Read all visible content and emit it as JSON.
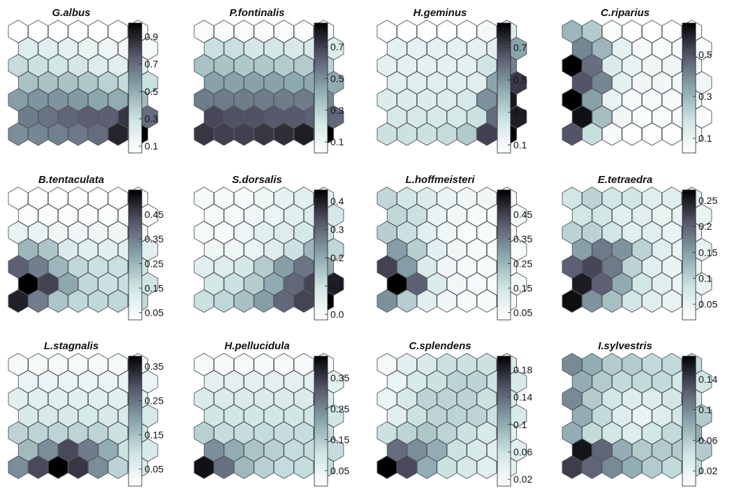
{
  "chart_data": [
    {
      "type": "heatmap",
      "title": "G.albus",
      "colorbar_ticks": [
        "0.1",
        "0.3",
        "0.5",
        "0.7",
        "0.9"
      ],
      "range": [
        0.05,
        1.0
      ],
      "values": [
        [
          0.04,
          0.04,
          0.04,
          0.05,
          0.05,
          0.05,
          0.05
        ],
        [
          0.22,
          0.2,
          0.18,
          0.16,
          0.14,
          0.12,
          0.1
        ],
        [
          0.32,
          0.3,
          0.28,
          0.26,
          0.22,
          0.2,
          0.18
        ],
        [
          0.42,
          0.42,
          0.42,
          0.4,
          0.36,
          0.32,
          0.3
        ],
        [
          0.55,
          0.58,
          0.58,
          0.56,
          0.52,
          0.5,
          0.45
        ],
        [
          0.65,
          0.68,
          0.72,
          0.74,
          0.74,
          0.85,
          0.7
        ],
        [
          0.6,
          0.62,
          0.64,
          0.66,
          0.7,
          0.9,
          1.0
        ]
      ]
    },
    {
      "type": "heatmap",
      "title": "P.fontinalis",
      "colorbar_ticks": [
        "0.1",
        "0.3",
        "0.5",
        "0.7"
      ],
      "range": [
        0.03,
        0.85
      ],
      "values": [
        [
          0.05,
          0.05,
          0.05,
          0.05,
          0.05,
          0.05,
          0.05
        ],
        [
          0.25,
          0.25,
          0.22,
          0.22,
          0.2,
          0.2,
          0.18
        ],
        [
          0.35,
          0.35,
          0.33,
          0.33,
          0.32,
          0.32,
          0.3
        ],
        [
          0.45,
          0.45,
          0.45,
          0.45,
          0.43,
          0.43,
          0.42
        ],
        [
          0.55,
          0.55,
          0.55,
          0.55,
          0.55,
          0.55,
          0.52
        ],
        [
          0.68,
          0.66,
          0.66,
          0.64,
          0.64,
          0.62,
          0.6
        ],
        [
          0.72,
          0.7,
          0.7,
          0.72,
          0.74,
          0.78,
          0.85
        ]
      ]
    },
    {
      "type": "heatmap",
      "title": "H.geminus",
      "colorbar_ticks": [
        "0.1",
        "0.3",
        "0.5",
        "0.7"
      ],
      "range": [
        0.05,
        0.85
      ],
      "values": [
        [
          0.06,
          0.06,
          0.06,
          0.06,
          0.06,
          0.1,
          0.2
        ],
        [
          0.16,
          0.16,
          0.16,
          0.16,
          0.16,
          0.18,
          0.45
        ],
        [
          0.16,
          0.16,
          0.16,
          0.16,
          0.16,
          0.25,
          0.55
        ],
        [
          0.18,
          0.18,
          0.18,
          0.18,
          0.18,
          0.45,
          0.72
        ],
        [
          0.2,
          0.2,
          0.2,
          0.2,
          0.22,
          0.5,
          0.8
        ],
        [
          0.22,
          0.22,
          0.22,
          0.22,
          0.26,
          0.6,
          0.78
        ],
        [
          0.26,
          0.26,
          0.26,
          0.28,
          0.34,
          0.7,
          0.85
        ]
      ]
    },
    {
      "type": "heatmap",
      "title": "C.riparius",
      "colorbar_ticks": [
        "0.1",
        "0.3",
        "0.5"
      ],
      "range": [
        0.03,
        0.65
      ],
      "values": [
        [
          0.3,
          0.25,
          0.05,
          0.03,
          0.03,
          0.03,
          0.03
        ],
        [
          0.4,
          0.3,
          0.12,
          0.06,
          0.05,
          0.05,
          0.05
        ],
        [
          0.65,
          0.45,
          0.15,
          0.1,
          0.08,
          0.08,
          0.08
        ],
        [
          0.5,
          0.4,
          0.12,
          0.08,
          0.08,
          0.08,
          0.08
        ],
        [
          0.65,
          0.35,
          0.1,
          0.06,
          0.06,
          0.06,
          0.06
        ],
        [
          0.62,
          0.28,
          0.08,
          0.05,
          0.05,
          0.05,
          0.05
        ],
        [
          0.5,
          0.2,
          0.06,
          0.04,
          0.04,
          0.04,
          0.04
        ]
      ]
    },
    {
      "type": "heatmap",
      "title": "B.tentaculata",
      "colorbar_ticks": [
        "0.05",
        "0.15",
        "0.25",
        "0.35",
        "0.45"
      ],
      "range": [
        0.02,
        0.55
      ],
      "values": [
        [
          0.02,
          0.02,
          0.02,
          0.02,
          0.02,
          0.02,
          0.02
        ],
        [
          0.03,
          0.03,
          0.03,
          0.03,
          0.03,
          0.03,
          0.03
        ],
        [
          0.08,
          0.08,
          0.06,
          0.06,
          0.06,
          0.06,
          0.06
        ],
        [
          0.25,
          0.22,
          0.12,
          0.1,
          0.1,
          0.1,
          0.1
        ],
        [
          0.4,
          0.35,
          0.25,
          0.18,
          0.16,
          0.16,
          0.15
        ],
        [
          0.55,
          0.45,
          0.28,
          0.18,
          0.16,
          0.16,
          0.15
        ],
        [
          0.5,
          0.35,
          0.22,
          0.18,
          0.18,
          0.18,
          0.18
        ]
      ]
    },
    {
      "type": "heatmap",
      "title": "S.dorsalis",
      "colorbar_ticks": [
        "0.0",
        "0.1",
        "0.2",
        "0.3",
        "0.4"
      ],
      "range": [
        -0.02,
        0.44
      ],
      "values": [
        [
          0.0,
          0.0,
          0.0,
          0.02,
          0.04,
          0.05,
          0.05
        ],
        [
          0.0,
          0.0,
          0.02,
          0.03,
          0.05,
          0.07,
          0.08
        ],
        [
          0.0,
          0.0,
          0.02,
          0.05,
          0.06,
          0.08,
          0.1
        ],
        [
          0.02,
          0.02,
          0.03,
          0.06,
          0.1,
          0.18,
          0.12
        ],
        [
          0.05,
          0.06,
          0.08,
          0.14,
          0.22,
          0.28,
          0.2
        ],
        [
          0.08,
          0.1,
          0.14,
          0.2,
          0.3,
          0.35,
          0.4
        ],
        [
          0.1,
          0.12,
          0.16,
          0.22,
          0.3,
          0.35,
          0.44
        ]
      ]
    },
    {
      "type": "heatmap",
      "title": "L.hoffmeisteri",
      "colorbar_ticks": [
        "0.05",
        "0.15",
        "0.25",
        "0.35",
        "0.45"
      ],
      "range": [
        0.02,
        0.55
      ],
      "values": [
        [
          0.18,
          0.14,
          0.12,
          0.08,
          0.06,
          0.06,
          0.06
        ],
        [
          0.18,
          0.16,
          0.08,
          0.06,
          0.04,
          0.04,
          0.04
        ],
        [
          0.2,
          0.16,
          0.1,
          0.06,
          0.04,
          0.04,
          0.04
        ],
        [
          0.3,
          0.2,
          0.1,
          0.06,
          0.04,
          0.04,
          0.04
        ],
        [
          0.45,
          0.3,
          0.12,
          0.06,
          0.04,
          0.04,
          0.04
        ],
        [
          0.55,
          0.4,
          0.12,
          0.06,
          0.04,
          0.04,
          0.04
        ],
        [
          0.32,
          0.2,
          0.1,
          0.06,
          0.04,
          0.04,
          0.04
        ]
      ]
    },
    {
      "type": "heatmap",
      "title": "E.tetraedra",
      "colorbar_ticks": [
        "0.05",
        "0.1",
        "0.15",
        "0.2",
        "0.25"
      ],
      "range": [
        0.02,
        0.27
      ],
      "values": [
        [
          0.08,
          0.1,
          0.08,
          0.08,
          0.06,
          0.06,
          0.06
        ],
        [
          0.08,
          0.08,
          0.06,
          0.06,
          0.05,
          0.05,
          0.05
        ],
        [
          0.1,
          0.1,
          0.08,
          0.06,
          0.06,
          0.05,
          0.05
        ],
        [
          0.15,
          0.18,
          0.16,
          0.1,
          0.06,
          0.05,
          0.05
        ],
        [
          0.2,
          0.22,
          0.18,
          0.1,
          0.06,
          0.05,
          0.05
        ],
        [
          0.25,
          0.2,
          0.14,
          0.08,
          0.06,
          0.05,
          0.05
        ],
        [
          0.26,
          0.16,
          0.12,
          0.08,
          0.06,
          0.05,
          0.05
        ]
      ]
    },
    {
      "type": "heatmap",
      "title": "L.stagnalis",
      "colorbar_ticks": [
        "0.05",
        "0.15",
        "0.25",
        "0.35"
      ],
      "range": [
        0.0,
        0.38
      ],
      "values": [
        [
          0.02,
          0.02,
          0.02,
          0.02,
          0.02,
          0.02,
          0.02
        ],
        [
          0.04,
          0.04,
          0.04,
          0.04,
          0.04,
          0.04,
          0.04
        ],
        [
          0.06,
          0.06,
          0.06,
          0.06,
          0.06,
          0.06,
          0.06
        ],
        [
          0.08,
          0.08,
          0.08,
          0.08,
          0.08,
          0.08,
          0.08
        ],
        [
          0.12,
          0.12,
          0.12,
          0.12,
          0.12,
          0.1,
          0.1
        ],
        [
          0.16,
          0.22,
          0.3,
          0.24,
          0.18,
          0.1,
          0.08
        ],
        [
          0.22,
          0.3,
          0.38,
          0.32,
          0.22,
          0.12,
          0.08
        ]
      ]
    },
    {
      "type": "heatmap",
      "title": "H.pellucidula",
      "colorbar_ticks": [
        "0.05",
        "0.15",
        "0.25",
        "0.35"
      ],
      "range": [
        0.0,
        0.42
      ],
      "values": [
        [
          0.02,
          0.02,
          0.02,
          0.02,
          0.02,
          0.02,
          0.02
        ],
        [
          0.06,
          0.06,
          0.06,
          0.06,
          0.06,
          0.06,
          0.06
        ],
        [
          0.08,
          0.08,
          0.08,
          0.08,
          0.08,
          0.08,
          0.08
        ],
        [
          0.1,
          0.1,
          0.1,
          0.1,
          0.1,
          0.1,
          0.1
        ],
        [
          0.14,
          0.12,
          0.12,
          0.12,
          0.12,
          0.12,
          0.12
        ],
        [
          0.24,
          0.2,
          0.16,
          0.14,
          0.12,
          0.12,
          0.12
        ],
        [
          0.4,
          0.28,
          0.18,
          0.14,
          0.12,
          0.12,
          0.12
        ]
      ]
    },
    {
      "type": "heatmap",
      "title": "C.splendens",
      "colorbar_ticks": [
        "0.02",
        "0.06",
        "0.1",
        "0.14",
        "0.18"
      ],
      "range": [
        0.01,
        0.2
      ],
      "values": [
        [
          0.02,
          0.04,
          0.05,
          0.06,
          0.06,
          0.06,
          0.05
        ],
        [
          0.03,
          0.05,
          0.06,
          0.07,
          0.07,
          0.06,
          0.05
        ],
        [
          0.03,
          0.05,
          0.07,
          0.07,
          0.07,
          0.06,
          0.05
        ],
        [
          0.04,
          0.06,
          0.07,
          0.07,
          0.07,
          0.06,
          0.05
        ],
        [
          0.06,
          0.07,
          0.08,
          0.07,
          0.06,
          0.05,
          0.04
        ],
        [
          0.14,
          0.12,
          0.1,
          0.06,
          0.05,
          0.04,
          0.04
        ],
        [
          0.2,
          0.16,
          0.1,
          0.06,
          0.05,
          0.04,
          0.04
        ]
      ]
    },
    {
      "type": "heatmap",
      "title": "I.sylvestris",
      "colorbar_ticks": [
        "0.02",
        "0.06",
        "0.1",
        "0.14"
      ],
      "range": [
        0.0,
        0.17
      ],
      "values": [
        [
          0.1,
          0.08,
          0.06,
          0.06,
          0.05,
          0.05,
          0.05
        ],
        [
          0.08,
          0.06,
          0.05,
          0.05,
          0.05,
          0.04,
          0.04
        ],
        [
          0.1,
          0.06,
          0.04,
          0.03,
          0.03,
          0.04,
          0.04
        ],
        [
          0.08,
          0.05,
          0.03,
          0.02,
          0.03,
          0.04,
          0.06
        ],
        [
          0.08,
          0.05,
          0.04,
          0.03,
          0.04,
          0.05,
          0.08
        ],
        [
          0.16,
          0.12,
          0.08,
          0.06,
          0.06,
          0.06,
          0.06
        ],
        [
          0.14,
          0.12,
          0.1,
          0.08,
          0.06,
          0.05,
          0.05
        ]
      ]
    }
  ],
  "colors": {
    "colormap": [
      "#ffffff",
      "#cfe5e4",
      "#8aa6ad",
      "#57576c",
      "#000000"
    ],
    "hex_edge": "#55595e",
    "colorbar_edge": "#222222"
  }
}
